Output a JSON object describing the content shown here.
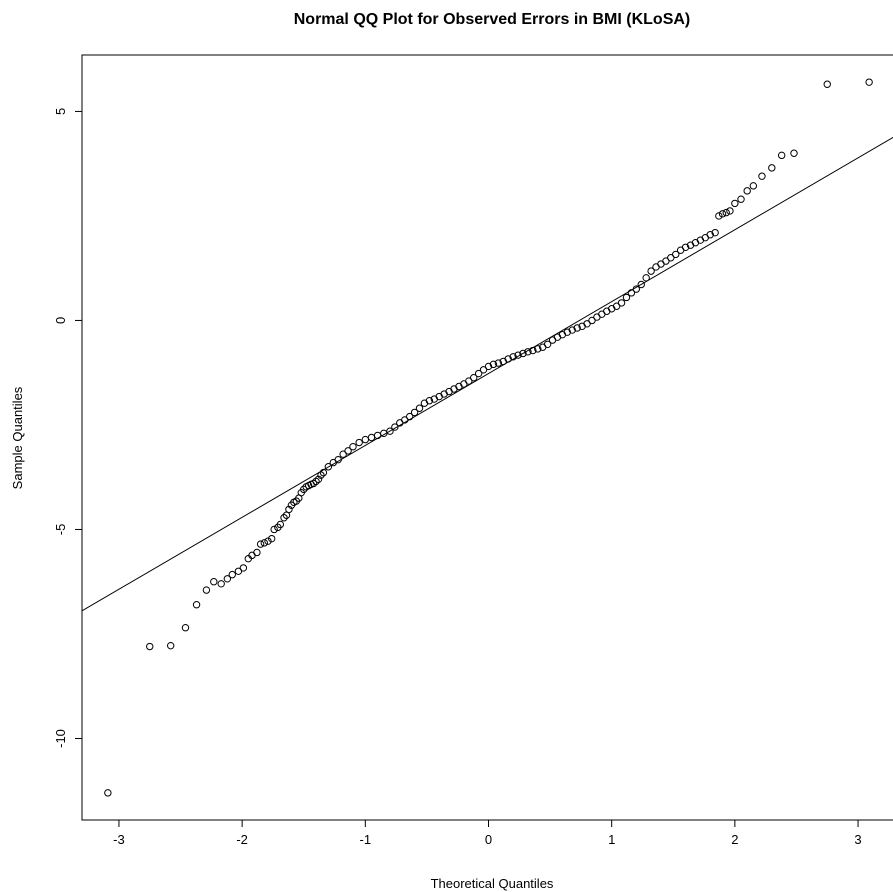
{
  "chart_data": {
    "type": "scatter",
    "title": "Normal QQ Plot for Observed Errors in BMI (KLoSA)",
    "xlabel": "Theoretical Quantiles",
    "ylabel": "Sample Quantiles",
    "xlim": [
      -3.3,
      3.3
    ],
    "ylim": [
      -11.95,
      6.35
    ],
    "xticks": [
      -3,
      -2,
      -1,
      0,
      1,
      2,
      3
    ],
    "yticks": [
      -10,
      -5,
      0,
      5
    ],
    "reference_line": {
      "intercept": -1.27,
      "slope": 1.72
    },
    "grid": false,
    "points": [
      [
        -3.09,
        -11.3
      ],
      [
        -2.75,
        -7.8
      ],
      [
        -2.58,
        -7.78
      ],
      [
        -2.46,
        -7.35
      ],
      [
        -2.37,
        -6.8
      ],
      [
        -2.29,
        -6.45
      ],
      [
        -2.23,
        -6.25
      ],
      [
        -2.17,
        -6.3
      ],
      [
        -2.12,
        -6.18
      ],
      [
        -2.08,
        -6.08
      ],
      [
        -2.03,
        -6.0
      ],
      [
        -1.99,
        -5.92
      ],
      [
        -1.95,
        -5.7
      ],
      [
        -1.92,
        -5.62
      ],
      [
        -1.88,
        -5.55
      ],
      [
        -1.85,
        -5.35
      ],
      [
        -1.82,
        -5.32
      ],
      [
        -1.79,
        -5.28
      ],
      [
        -1.76,
        -5.22
      ],
      [
        -1.74,
        -5.0
      ],
      [
        -1.71,
        -4.95
      ],
      [
        -1.69,
        -4.88
      ],
      [
        -1.66,
        -4.72
      ],
      [
        -1.64,
        -4.66
      ],
      [
        -1.62,
        -4.52
      ],
      [
        -1.6,
        -4.42
      ],
      [
        -1.58,
        -4.35
      ],
      [
        -1.56,
        -4.32
      ],
      [
        -1.54,
        -4.25
      ],
      [
        -1.52,
        -4.12
      ],
      [
        -1.5,
        -4.04
      ],
      [
        -1.48,
        -3.98
      ],
      [
        -1.46,
        -3.95
      ],
      [
        -1.44,
        -3.92
      ],
      [
        -1.42,
        -3.9
      ],
      [
        -1.4,
        -3.85
      ],
      [
        -1.38,
        -3.8
      ],
      [
        -1.36,
        -3.7
      ],
      [
        -1.34,
        -3.64
      ],
      [
        -1.3,
        -3.5
      ],
      [
        -1.26,
        -3.4
      ],
      [
        -1.22,
        -3.33
      ],
      [
        -1.18,
        -3.2
      ],
      [
        -1.14,
        -3.12
      ],
      [
        -1.1,
        -3.02
      ],
      [
        -1.05,
        -2.92
      ],
      [
        -1.0,
        -2.85
      ],
      [
        -0.95,
        -2.8
      ],
      [
        -0.9,
        -2.75
      ],
      [
        -0.85,
        -2.7
      ],
      [
        -0.8,
        -2.65
      ],
      [
        -0.76,
        -2.55
      ],
      [
        -0.72,
        -2.45
      ],
      [
        -0.68,
        -2.38
      ],
      [
        -0.64,
        -2.3
      ],
      [
        -0.6,
        -2.2
      ],
      [
        -0.56,
        -2.1
      ],
      [
        -0.52,
        -1.98
      ],
      [
        -0.48,
        -1.92
      ],
      [
        -0.44,
        -1.88
      ],
      [
        -0.4,
        -1.82
      ],
      [
        -0.36,
        -1.76
      ],
      [
        -0.32,
        -1.7
      ],
      [
        -0.28,
        -1.64
      ],
      [
        -0.24,
        -1.58
      ],
      [
        -0.2,
        -1.52
      ],
      [
        -0.16,
        -1.45
      ],
      [
        -0.12,
        -1.37
      ],
      [
        -0.08,
        -1.27
      ],
      [
        -0.04,
        -1.18
      ],
      [
        0.0,
        -1.1
      ],
      [
        0.04,
        -1.05
      ],
      [
        0.08,
        -1.02
      ],
      [
        0.12,
        -0.98
      ],
      [
        0.16,
        -0.92
      ],
      [
        0.2,
        -0.87
      ],
      [
        0.24,
        -0.83
      ],
      [
        0.28,
        -0.79
      ],
      [
        0.32,
        -0.75
      ],
      [
        0.36,
        -0.72
      ],
      [
        0.4,
        -0.68
      ],
      [
        0.44,
        -0.64
      ],
      [
        0.48,
        -0.57
      ],
      [
        0.52,
        -0.47
      ],
      [
        0.56,
        -0.4
      ],
      [
        0.6,
        -0.34
      ],
      [
        0.64,
        -0.28
      ],
      [
        0.68,
        -0.23
      ],
      [
        0.72,
        -0.18
      ],
      [
        0.76,
        -0.14
      ],
      [
        0.8,
        -0.08
      ],
      [
        0.84,
        0.0
      ],
      [
        0.88,
        0.08
      ],
      [
        0.92,
        0.15
      ],
      [
        0.96,
        0.22
      ],
      [
        1.0,
        0.28
      ],
      [
        1.04,
        0.34
      ],
      [
        1.08,
        0.42
      ],
      [
        1.12,
        0.55
      ],
      [
        1.16,
        0.66
      ],
      [
        1.2,
        0.75
      ],
      [
        1.24,
        0.86
      ],
      [
        1.28,
        1.02
      ],
      [
        1.32,
        1.18
      ],
      [
        1.36,
        1.28
      ],
      [
        1.4,
        1.35
      ],
      [
        1.44,
        1.42
      ],
      [
        1.48,
        1.5
      ],
      [
        1.52,
        1.58
      ],
      [
        1.56,
        1.68
      ],
      [
        1.6,
        1.75
      ],
      [
        1.64,
        1.8
      ],
      [
        1.68,
        1.86
      ],
      [
        1.72,
        1.92
      ],
      [
        1.76,
        1.98
      ],
      [
        1.8,
        2.05
      ],
      [
        1.84,
        2.1
      ],
      [
        1.87,
        2.5
      ],
      [
        1.9,
        2.55
      ],
      [
        1.93,
        2.58
      ],
      [
        1.96,
        2.62
      ],
      [
        2.0,
        2.8
      ],
      [
        2.05,
        2.9
      ],
      [
        2.1,
        3.1
      ],
      [
        2.15,
        3.22
      ],
      [
        2.22,
        3.45
      ],
      [
        2.3,
        3.65
      ],
      [
        2.38,
        3.95
      ],
      [
        2.48,
        4.0
      ],
      [
        2.75,
        5.65
      ],
      [
        3.09,
        5.7
      ]
    ]
  }
}
